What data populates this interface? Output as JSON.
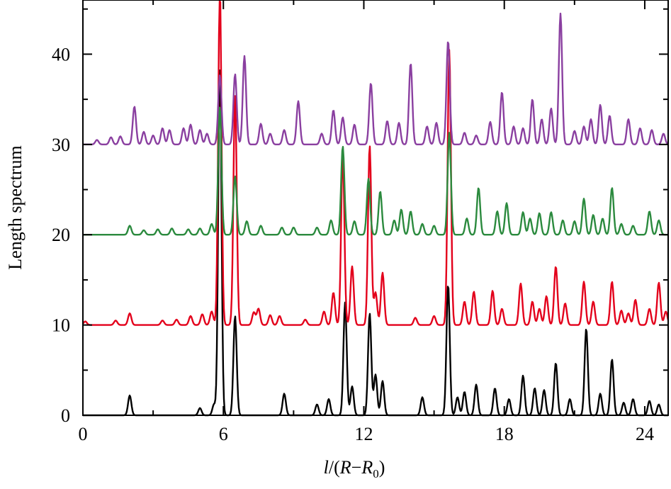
{
  "chart_data": {
    "type": "line",
    "xlabel": "l/(R−R0)",
    "xlabel_parts": [
      "l",
      "/(",
      "R",
      "−",
      "R",
      "0",
      ")"
    ],
    "ylabel": "Length spectrum",
    "xlim": [
      0,
      25
    ],
    "ylim": [
      0,
      46
    ],
    "xticks": [
      0,
      6,
      12,
      18,
      24
    ],
    "yticks": [
      0,
      10,
      20,
      30,
      40
    ],
    "grid": false,
    "legend": "none",
    "series": [
      {
        "color": "#000000",
        "baseline": 0,
        "peaks": [
          [
            2.0,
            2.2
          ],
          [
            5.0,
            0.8
          ],
          [
            5.6,
            1.2
          ],
          [
            5.85,
            38.5
          ],
          [
            6.5,
            11.0
          ],
          [
            8.6,
            2.4
          ],
          [
            10.0,
            1.2
          ],
          [
            10.5,
            1.8
          ],
          [
            11.2,
            12.5
          ],
          [
            11.5,
            3.2
          ],
          [
            12.25,
            11.3
          ],
          [
            12.5,
            4.5
          ],
          [
            12.8,
            3.8
          ],
          [
            14.5,
            2.0
          ],
          [
            15.6,
            14.5
          ],
          [
            16.0,
            2.0
          ],
          [
            16.3,
            2.6
          ],
          [
            16.8,
            3.4
          ],
          [
            17.6,
            3.0
          ],
          [
            18.2,
            1.8
          ],
          [
            18.8,
            4.4
          ],
          [
            19.3,
            3.0
          ],
          [
            19.7,
            2.8
          ],
          [
            20.2,
            5.8
          ],
          [
            20.8,
            1.8
          ],
          [
            21.5,
            9.6
          ],
          [
            22.1,
            2.4
          ],
          [
            22.6,
            6.2
          ],
          [
            23.1,
            1.4
          ],
          [
            23.5,
            1.8
          ],
          [
            24.2,
            1.6
          ],
          [
            24.6,
            1.2
          ]
        ]
      },
      {
        "color": "#e3001b",
        "baseline": 10,
        "peaks": [
          [
            0.1,
            0.4
          ],
          [
            1.4,
            0.5
          ],
          [
            2.0,
            1.3
          ],
          [
            3.4,
            0.5
          ],
          [
            4.0,
            0.6
          ],
          [
            4.6,
            1.0
          ],
          [
            5.1,
            1.2
          ],
          [
            5.5,
            1.5
          ],
          [
            5.85,
            37.5
          ],
          [
            6.5,
            25.5
          ],
          [
            7.3,
            1.4
          ],
          [
            7.5,
            1.8
          ],
          [
            8.0,
            1.1
          ],
          [
            8.4,
            1.0
          ],
          [
            9.5,
            0.6
          ],
          [
            10.3,
            1.5
          ],
          [
            10.7,
            3.6
          ],
          [
            11.1,
            18.8
          ],
          [
            11.5,
            6.5
          ],
          [
            12.25,
            19.9
          ],
          [
            12.5,
            3.6
          ],
          [
            12.8,
            5.8
          ],
          [
            14.2,
            0.8
          ],
          [
            15.0,
            1.0
          ],
          [
            15.65,
            30.5
          ],
          [
            16.3,
            2.6
          ],
          [
            16.7,
            3.7
          ],
          [
            17.5,
            3.8
          ],
          [
            17.9,
            1.8
          ],
          [
            18.7,
            4.6
          ],
          [
            19.2,
            2.6
          ],
          [
            19.5,
            1.8
          ],
          [
            19.8,
            3.2
          ],
          [
            20.2,
            6.5
          ],
          [
            20.6,
            2.4
          ],
          [
            21.4,
            4.8
          ],
          [
            21.8,
            2.6
          ],
          [
            22.6,
            4.8
          ],
          [
            23.0,
            1.6
          ],
          [
            23.3,
            1.3
          ],
          [
            23.6,
            2.8
          ],
          [
            24.2,
            1.8
          ],
          [
            24.6,
            4.7
          ],
          [
            24.9,
            1.5
          ]
        ]
      },
      {
        "color": "#2b8a3e",
        "baseline": 20,
        "peaks": [
          [
            2.0,
            1.0
          ],
          [
            2.6,
            0.5
          ],
          [
            3.2,
            0.6
          ],
          [
            3.8,
            0.7
          ],
          [
            4.5,
            0.6
          ],
          [
            5.0,
            0.7
          ],
          [
            5.5,
            1.2
          ],
          [
            5.85,
            14.2
          ],
          [
            6.5,
            6.5
          ],
          [
            7.0,
            1.5
          ],
          [
            7.6,
            1.0
          ],
          [
            8.5,
            0.8
          ],
          [
            9.0,
            0.8
          ],
          [
            10.0,
            0.8
          ],
          [
            10.6,
            1.6
          ],
          [
            11.1,
            9.8
          ],
          [
            11.6,
            1.5
          ],
          [
            12.2,
            6.2
          ],
          [
            12.7,
            4.8
          ],
          [
            13.3,
            1.6
          ],
          [
            13.6,
            2.8
          ],
          [
            14.0,
            2.6
          ],
          [
            14.5,
            1.2
          ],
          [
            15.0,
            1.0
          ],
          [
            15.65,
            11.3
          ],
          [
            16.4,
            1.8
          ],
          [
            16.9,
            5.2
          ],
          [
            17.7,
            2.6
          ],
          [
            18.1,
            3.5
          ],
          [
            18.8,
            2.5
          ],
          [
            19.1,
            1.8
          ],
          [
            19.5,
            2.4
          ],
          [
            20.0,
            2.5
          ],
          [
            20.5,
            1.6
          ],
          [
            21.0,
            1.5
          ],
          [
            21.4,
            4.0
          ],
          [
            21.8,
            2.2
          ],
          [
            22.2,
            1.8
          ],
          [
            22.6,
            5.2
          ],
          [
            23.0,
            1.2
          ],
          [
            23.5,
            1.0
          ],
          [
            24.2,
            2.6
          ],
          [
            24.6,
            1.6
          ]
        ]
      },
      {
        "color": "#8a3fa0",
        "baseline": 30,
        "peaks": [
          [
            0.6,
            0.5
          ],
          [
            1.2,
            0.8
          ],
          [
            1.6,
            0.9
          ],
          [
            2.2,
            4.2
          ],
          [
            2.6,
            1.4
          ],
          [
            3.0,
            1.0
          ],
          [
            3.4,
            1.8
          ],
          [
            3.7,
            1.6
          ],
          [
            4.3,
            1.8
          ],
          [
            4.6,
            2.2
          ],
          [
            5.0,
            1.6
          ],
          [
            5.3,
            1.2
          ],
          [
            5.85,
            7.7
          ],
          [
            6.5,
            7.8
          ],
          [
            6.9,
            9.8
          ],
          [
            7.6,
            2.3
          ],
          [
            8.0,
            1.2
          ],
          [
            8.6,
            1.6
          ],
          [
            9.2,
            4.8
          ],
          [
            10.2,
            1.2
          ],
          [
            10.7,
            3.8
          ],
          [
            11.1,
            3.0
          ],
          [
            11.6,
            2.2
          ],
          [
            12.3,
            6.8
          ],
          [
            13.0,
            2.6
          ],
          [
            13.5,
            2.4
          ],
          [
            14.0,
            9.0
          ],
          [
            14.7,
            2.0
          ],
          [
            15.1,
            2.4
          ],
          [
            15.6,
            11.5
          ],
          [
            16.3,
            1.3
          ],
          [
            16.8,
            1.0
          ],
          [
            17.4,
            2.5
          ],
          [
            17.9,
            5.8
          ],
          [
            18.4,
            2.0
          ],
          [
            18.8,
            1.8
          ],
          [
            19.2,
            5.0
          ],
          [
            19.6,
            2.8
          ],
          [
            20.0,
            4.0
          ],
          [
            20.4,
            14.5
          ],
          [
            21.0,
            1.5
          ],
          [
            21.4,
            2.0
          ],
          [
            21.7,
            2.8
          ],
          [
            22.1,
            4.4
          ],
          [
            22.5,
            3.2
          ],
          [
            23.3,
            2.8
          ],
          [
            23.8,
            1.8
          ],
          [
            24.3,
            1.6
          ],
          [
            24.8,
            1.2
          ]
        ]
      }
    ]
  }
}
